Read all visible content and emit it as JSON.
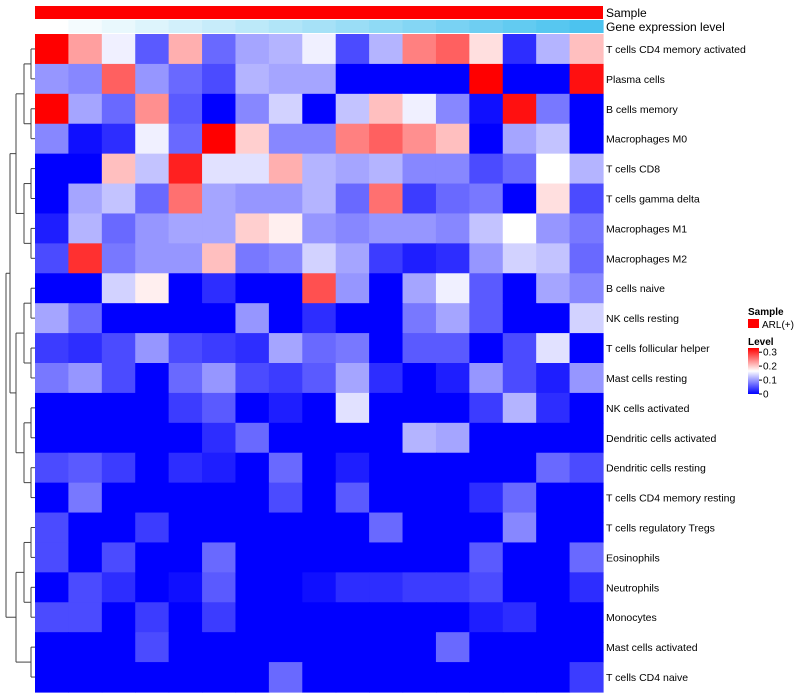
{
  "chart_data": {
    "type": "heatmap",
    "column_annotations": [
      {
        "name": "Sample",
        "kind": "categorical",
        "values": [
          "ARL(+)"
        ],
        "color": "#ff0000"
      },
      {
        "name": "Gene expression level",
        "kind": "gradient",
        "from_color": "#ffffff",
        "to_color": "#4cc3ef"
      }
    ],
    "rows": [
      {
        "name": "T cells CD4 memory activated",
        "values": [
          0.33,
          0.23,
          0.16,
          0.06,
          0.22,
          0.07,
          0.11,
          0.12,
          0.16,
          0.05,
          0.12,
          0.25,
          0.27,
          0.19,
          0.03,
          0.12,
          0.21
        ]
      },
      {
        "name": "Plasma cells",
        "values": [
          0.1,
          0.09,
          0.27,
          0.1,
          0.07,
          0.05,
          0.12,
          0.11,
          0.11,
          0.0,
          0.0,
          0.0,
          0.0,
          0.33,
          0.0,
          0.0,
          0.32
        ]
      },
      {
        "name": "B cells memory",
        "values": [
          0.33,
          0.11,
          0.07,
          0.24,
          0.06,
          0.0,
          0.09,
          0.14,
          0.0,
          0.13,
          0.21,
          0.16,
          0.09,
          0.01,
          0.32,
          0.08,
          0.0
        ]
      },
      {
        "name": "Macrophages M0",
        "values": [
          0.09,
          0.01,
          0.03,
          0.16,
          0.07,
          0.33,
          0.2,
          0.09,
          0.09,
          0.25,
          0.27,
          0.24,
          0.21,
          0.0,
          0.11,
          0.13,
          0.0
        ]
      },
      {
        "name": "T cells CD8",
        "values": [
          0.0,
          0.0,
          0.21,
          0.13,
          0.31,
          0.15,
          0.15,
          0.22,
          0.12,
          0.11,
          0.12,
          0.09,
          0.09,
          0.05,
          0.07,
          0.17,
          0.12
        ]
      },
      {
        "name": "T cells gamma delta",
        "values": [
          0.0,
          0.11,
          0.13,
          0.07,
          0.26,
          0.11,
          0.1,
          0.1,
          0.12,
          0.07,
          0.26,
          0.04,
          0.07,
          0.08,
          0.0,
          0.19,
          0.05
        ]
      },
      {
        "name": "Macrophages M1",
        "values": [
          0.02,
          0.12,
          0.07,
          0.1,
          0.11,
          0.11,
          0.2,
          0.18,
          0.1,
          0.09,
          0.1,
          0.1,
          0.09,
          0.13,
          0.17,
          0.1,
          0.08
        ]
      },
      {
        "name": "Macrophages M2",
        "values": [
          0.05,
          0.3,
          0.08,
          0.1,
          0.1,
          0.21,
          0.08,
          0.09,
          0.14,
          0.11,
          0.04,
          0.02,
          0.03,
          0.1,
          0.14,
          0.13,
          0.07
        ]
      },
      {
        "name": "B cells naive",
        "values": [
          0.0,
          0.0,
          0.14,
          0.18,
          0.0,
          0.03,
          0.0,
          0.0,
          0.28,
          0.1,
          0.0,
          0.11,
          0.16,
          0.06,
          0.0,
          0.11,
          0.09
        ]
      },
      {
        "name": "NK cells resting",
        "values": [
          0.11,
          0.07,
          0.0,
          0.0,
          0.0,
          0.0,
          0.1,
          0.0,
          0.03,
          0.0,
          0.0,
          0.08,
          0.11,
          0.06,
          0.0,
          0.0,
          0.14
        ]
      },
      {
        "name": "T cells follicular helper",
        "values": [
          0.04,
          0.03,
          0.05,
          0.1,
          0.05,
          0.04,
          0.03,
          0.11,
          0.07,
          0.08,
          0.0,
          0.06,
          0.06,
          0.0,
          0.05,
          0.15,
          0.0
        ]
      },
      {
        "name": "Mast cells resting",
        "values": [
          0.08,
          0.1,
          0.05,
          0.0,
          0.07,
          0.1,
          0.05,
          0.04,
          0.06,
          0.11,
          0.03,
          0.0,
          0.02,
          0.1,
          0.05,
          0.02,
          0.1
        ]
      },
      {
        "name": "NK cells activated",
        "values": [
          0.0,
          0.0,
          0.0,
          0.0,
          0.04,
          0.06,
          0.0,
          0.02,
          0.0,
          0.15,
          0.0,
          0.0,
          0.0,
          0.04,
          0.12,
          0.03,
          0.0
        ]
      },
      {
        "name": "Dendritic cells activated",
        "values": [
          0.0,
          0.0,
          0.0,
          0.0,
          0.0,
          0.03,
          0.07,
          0.0,
          0.0,
          0.0,
          0.0,
          0.12,
          0.11,
          0.0,
          0.0,
          0.0,
          0.0
        ]
      },
      {
        "name": "Dendritic cells resting",
        "values": [
          0.05,
          0.06,
          0.04,
          0.0,
          0.03,
          0.02,
          0.0,
          0.07,
          0.0,
          0.02,
          0.0,
          0.0,
          0.0,
          0.0,
          0.0,
          0.07,
          0.05
        ]
      },
      {
        "name": "T cells CD4 memory resting",
        "values": [
          0.0,
          0.08,
          0.0,
          0.0,
          0.0,
          0.0,
          0.0,
          0.05,
          0.0,
          0.06,
          0.0,
          0.0,
          0.0,
          0.03,
          0.07,
          0.0,
          0.0
        ]
      },
      {
        "name": "T cells regulatory  Tregs",
        "values": [
          0.05,
          0.0,
          0.0,
          0.04,
          0.0,
          0.0,
          0.0,
          0.0,
          0.0,
          0.0,
          0.07,
          0.0,
          0.0,
          0.0,
          0.09,
          0.0,
          0.0
        ]
      },
      {
        "name": "Eosinophils",
        "values": [
          0.05,
          0.0,
          0.05,
          0.0,
          0.0,
          0.07,
          0.0,
          0.0,
          0.0,
          0.0,
          0.0,
          0.0,
          0.0,
          0.06,
          0.0,
          0.0,
          0.07
        ]
      },
      {
        "name": "Neutrophils",
        "values": [
          0.0,
          0.05,
          0.03,
          0.0,
          0.01,
          0.06,
          0.0,
          0.0,
          0.01,
          0.03,
          0.03,
          0.04,
          0.04,
          0.05,
          0.0,
          0.0,
          0.03
        ]
      },
      {
        "name": "Monocytes",
        "values": [
          0.05,
          0.05,
          0.0,
          0.04,
          0.0,
          0.04,
          0.0,
          0.0,
          0.0,
          0.0,
          0.0,
          0.0,
          0.0,
          0.02,
          0.03,
          0.0,
          0.0
        ]
      },
      {
        "name": "Mast cells activated",
        "values": [
          0.0,
          0.0,
          0.0,
          0.05,
          0.0,
          0.0,
          0.0,
          0.0,
          0.0,
          0.0,
          0.0,
          0.0,
          0.07,
          0.0,
          0.0,
          0.0,
          0.0
        ]
      },
      {
        "name": "T cells CD4 naive",
        "values": [
          0.0,
          0.0,
          0.0,
          0.0,
          0.0,
          0.0,
          0.0,
          0.07,
          0.0,
          0.0,
          0.0,
          0.0,
          0.0,
          0.0,
          0.0,
          0.0,
          0.04
        ]
      }
    ],
    "color_scale": {
      "min": 0,
      "mid": 0.17,
      "max": 0.33,
      "low_color": "#0000ff",
      "mid_color": "#ffffff",
      "high_color": "#ff0000"
    },
    "legend": {
      "placement": "right",
      "sample_title": "Sample",
      "sample_item": "ARL(+)",
      "level_title": "Level",
      "level_ticks": [
        "0.3",
        "0.2",
        "0.1",
        "0"
      ],
      "level_tick_values": [
        0.3,
        0.2,
        0.1,
        0
      ]
    },
    "row_dendrogram": true,
    "column_dendrogram": false
  }
}
